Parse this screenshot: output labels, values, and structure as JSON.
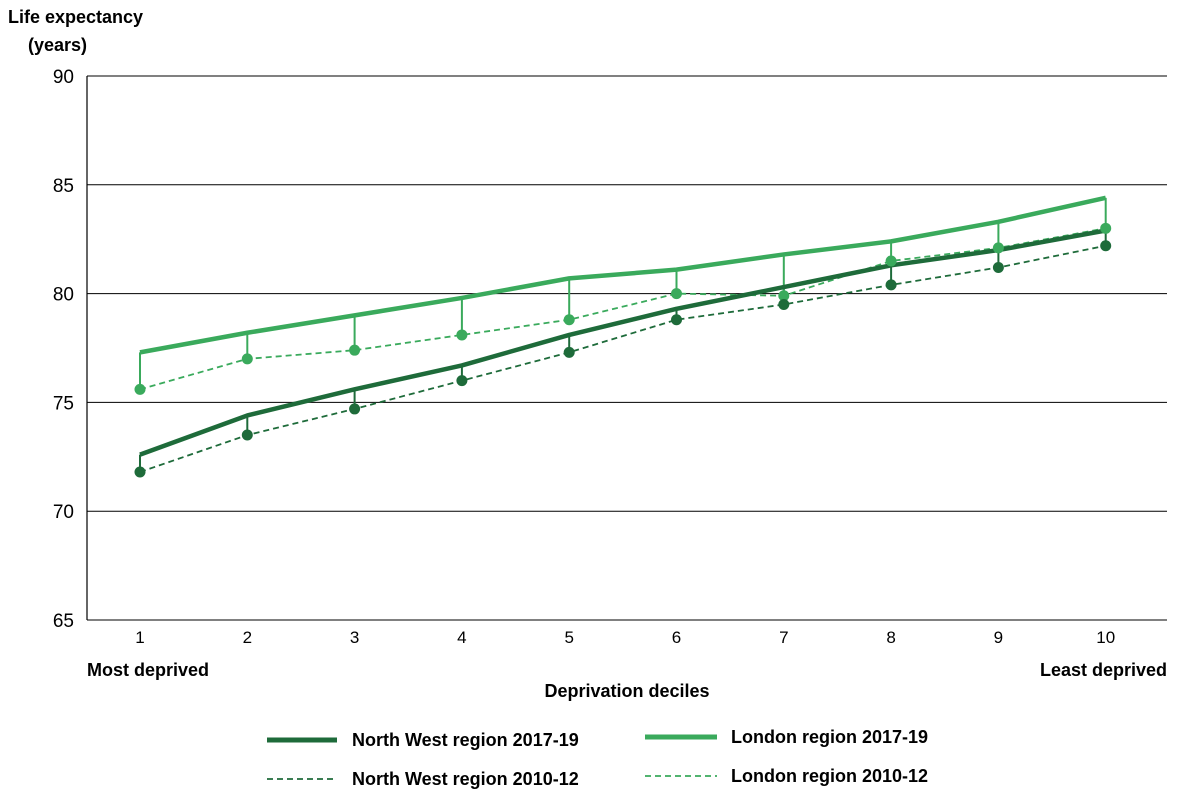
{
  "chart_data": {
    "type": "line",
    "ylabel": [
      "Life expectancy",
      "(years)"
    ],
    "xlabel": "Deprivation deciles",
    "x_left_label": "Most deprived",
    "x_right_label": "Least deprived",
    "categories": [
      "1",
      "2",
      "3",
      "4",
      "5",
      "6",
      "7",
      "8",
      "9",
      "10"
    ],
    "ylim": [
      65,
      90
    ],
    "yticks": [
      65,
      70,
      75,
      80,
      85,
      90
    ],
    "grid": "horizontal",
    "legend_position": "bottom",
    "series": [
      {
        "name": "North West region 2017-19",
        "color": "#1e6b3a",
        "style": "solid",
        "values": [
          72.6,
          74.4,
          75.6,
          76.7,
          78.1,
          79.3,
          80.3,
          81.3,
          82.0,
          82.9
        ]
      },
      {
        "name": "London region 2017-19",
        "color": "#3aaa5c",
        "style": "solid",
        "values": [
          77.3,
          78.2,
          79.0,
          79.8,
          80.7,
          81.1,
          81.8,
          82.4,
          83.3,
          84.4
        ]
      },
      {
        "name": "North West region 2010-12",
        "color": "#1e6b3a",
        "style": "dashed",
        "values": [
          71.8,
          73.5,
          74.7,
          76.0,
          77.3,
          78.8,
          79.5,
          80.4,
          81.2,
          82.2
        ]
      },
      {
        "name": "London region 2010-12",
        "color": "#3aaa5c",
        "style": "dashed",
        "values": [
          75.6,
          77.0,
          77.4,
          78.1,
          78.8,
          80.0,
          79.9,
          81.5,
          82.1,
          83.0
        ]
      }
    ]
  }
}
